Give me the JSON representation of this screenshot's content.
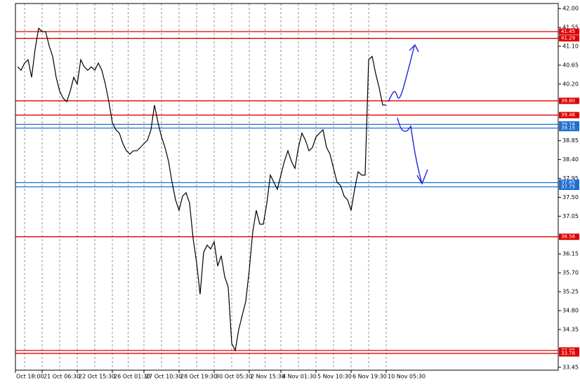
{
  "chart_data": {
    "type": "line",
    "color": "#000000",
    "categories": [
      "Oct 18:00",
      null,
      null,
      null,
      null,
      null,
      null,
      null,
      null,
      null,
      "21 Oct 06:30",
      null,
      null,
      null,
      null,
      null,
      null,
      null,
      null,
      null,
      "22 Oct 15:30",
      null,
      null,
      null,
      null,
      null,
      null,
      null,
      null,
      null,
      "26 Oct 01:30",
      null,
      null,
      null,
      null,
      null,
      null,
      null,
      null,
      "27 Oct 10:30",
      null,
      null,
      null,
      null,
      null,
      null,
      null,
      null,
      null,
      "28 Oct 19:30",
      null,
      null,
      null,
      null,
      null,
      null,
      null,
      null,
      null,
      "30 Oct 05:30",
      null,
      null,
      null,
      null,
      null,
      null,
      null,
      null,
      null,
      "2 Nov 15:30",
      null,
      null,
      null,
      null,
      null,
      null,
      null,
      null,
      "4 Nov 01:30",
      null,
      null,
      null,
      null,
      null,
      null,
      null,
      null,
      null,
      "5 Nov 10:30",
      null,
      null,
      null,
      null,
      null,
      null,
      null,
      null,
      null,
      "6 Nov 19:30",
      null,
      null,
      null,
      null,
      null,
      null,
      null,
      null,
      null,
      "10 Nov 05:30"
    ],
    "values": [
      null,
      null,
      null,
      40.61,
      40.53,
      40.7,
      40.78,
      40.36,
      41.03,
      41.53,
      41.45,
      41.45,
      41.11,
      40.86,
      40.36,
      40.03,
      39.86,
      39.78,
      40.03,
      40.36,
      40.2,
      40.78,
      40.61,
      40.53,
      40.61,
      40.53,
      40.7,
      40.53,
      40.2,
      39.78,
      39.28,
      39.11,
      39.03,
      38.78,
      38.61,
      38.53,
      38.61,
      38.61,
      38.69,
      38.78,
      38.86,
      39.11,
      39.7,
      39.28,
      38.94,
      38.69,
      38.36,
      37.86,
      37.44,
      37.19,
      37.53,
      37.61,
      37.36,
      36.52,
      35.94,
      35.19,
      36.19,
      36.36,
      36.27,
      36.44,
      35.86,
      36.11,
      35.61,
      35.36,
      34.02,
      33.85,
      34.35,
      34.69,
      35.02,
      35.77,
      36.69,
      37.19,
      36.86,
      36.86,
      37.36,
      38.03,
      37.86,
      37.69,
      38.03,
      38.36,
      38.61,
      38.36,
      38.19,
      38.69,
      39.03,
      38.86,
      38.61,
      38.69,
      38.94,
      39.03,
      39.11,
      38.69,
      38.53,
      38.19,
      37.86,
      37.78,
      37.53,
      37.44,
      37.19,
      37.69,
      38.11,
      38.03,
      38.03,
      40.78,
      40.86,
      40.45,
      40.11,
      39.7,
      39.7
    ],
    "ylim": [
      33.38,
      42.12
    ],
    "yticks": [
      {
        "value": 42,
        "label": "42.00"
      },
      {
        "value": 41.55,
        "label": "41.55"
      },
      {
        "value": 41.1,
        "label": "41.10"
      },
      {
        "value": 40.65,
        "label": "40.65"
      },
      {
        "value": 40.2,
        "label": "40.20"
      },
      {
        "value": 38.85,
        "label": "38.85"
      },
      {
        "value": 38.4,
        "label": "38.40"
      },
      {
        "value": 37.95,
        "label": "37.95"
      },
      {
        "value": 37.5,
        "label": "37.50"
      },
      {
        "value": 37.05,
        "label": "37.05"
      },
      {
        "value": 36.15,
        "label": "36.15"
      },
      {
        "value": 35.7,
        "label": "35.70"
      },
      {
        "value": 35.25,
        "label": "35.25"
      },
      {
        "value": 34.8,
        "label": "34.80"
      },
      {
        "value": 34.35,
        "label": "34.35"
      },
      {
        "value": 33.45,
        "label": "33.45"
      }
    ],
    "levels": {
      "values": [
        41.45,
        41.29,
        39.8,
        39.46,
        39.24,
        39.15,
        37.85,
        37.75,
        36.56,
        33.85,
        33.78
      ],
      "value_labels": [
        "41.45",
        "41.29",
        "39.80",
        "39.46",
        "39.24",
        "39.15",
        "37.85",
        "37.75",
        "36.56",
        "33.85",
        "33.78"
      ],
      "colors": [
        "#e00000",
        "#e00000",
        "#e00000",
        "#e00000",
        "#1e6fd0",
        "#1e6fd0",
        "#1e6fd0",
        "#1e6fd0",
        "#e00000",
        "#e00000",
        "#e00000"
      ]
    },
    "grid": true
  }
}
